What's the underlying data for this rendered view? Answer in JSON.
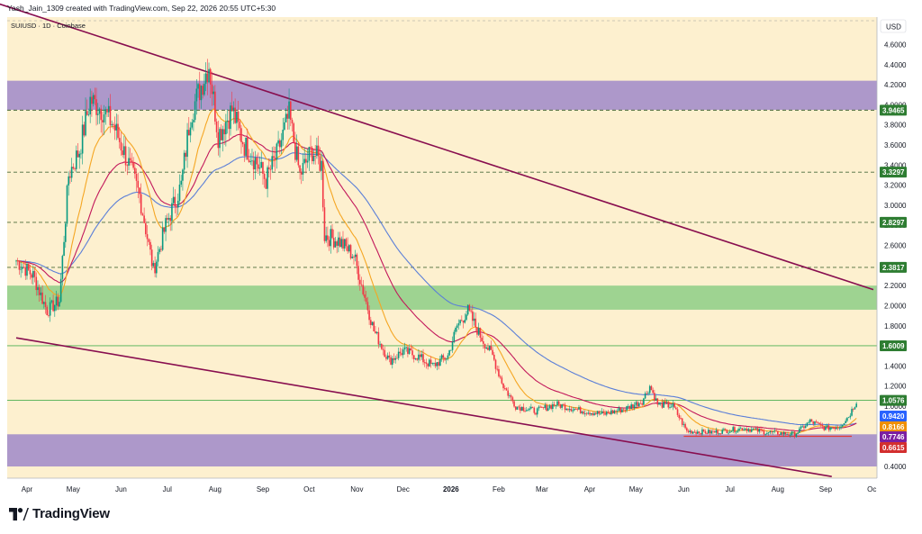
{
  "header": {
    "byline": "Yash_Jain_1309 created with TradingView.com, Sep 22, 2026 20:55 UTC+5:30",
    "symbol": "SUIUSD · 1D · Coinbase"
  },
  "brand": {
    "name": "TradingView"
  },
  "colors": {
    "background": "#fdf0cf",
    "purple_zone": "#a48ec9",
    "green_zone": "#93cf8a",
    "channel_line": "#880e4f",
    "ema_fast": "#f5a623",
    "ema_mid": "#c2185b",
    "ma_slow": "#5b7fd8",
    "bull": "#089981",
    "bear": "#f23645",
    "support_line": "#e53935",
    "level_line": "#4caf50"
  },
  "chart_data": {
    "type": "candlestick",
    "currency": "USD",
    "x_tick_labels": [
      "Apr",
      "May",
      "Jun",
      "Jul",
      "Aug",
      "Sep",
      "Oct",
      "Nov",
      "Dec",
      "2026",
      "Feb",
      "Mar",
      "Apr",
      "May",
      "Jun",
      "Jul",
      "Aug",
      "Sep",
      "Oc"
    ],
    "y_ticks": [
      "4.6000",
      "4.4000",
      "4.2000",
      "4.0000",
      "3.8000",
      "3.6000",
      "3.4000",
      "3.2000",
      "3.0000",
      "2.8000",
      "2.6000",
      "2.4000",
      "2.2000",
      "2.0000",
      "1.8000",
      "1.6000",
      "1.4000",
      "1.2000",
      "1.0000",
      "0.4000"
    ],
    "y_tick_values": [
      4.6,
      4.4,
      4.2,
      4.0,
      3.8,
      3.6,
      3.4,
      3.2,
      3.0,
      2.8,
      2.6,
      2.4,
      2.2,
      2.0,
      1.8,
      1.6,
      1.4,
      1.2,
      1.0,
      0.4
    ],
    "price_levels": [
      {
        "label": "3.9465",
        "value": 3.9465,
        "style": "dashed",
        "badge": "green"
      },
      {
        "label": "3.3297",
        "value": 3.3297,
        "style": "dashed",
        "badge": "green"
      },
      {
        "label": "2.8297",
        "value": 2.8297,
        "style": "dashed",
        "badge": "green"
      },
      {
        "label": "2.3817",
        "value": 2.3817,
        "style": "dashed",
        "badge": "green"
      },
      {
        "label": "1.6009",
        "value": 1.6009,
        "style": "solid",
        "badge": "green"
      },
      {
        "label": "1.0576",
        "value": 1.0576,
        "style": "solid",
        "badge": "green"
      },
      {
        "label": "0.9420",
        "value": 0.942,
        "style": "none",
        "badge": "blue"
      },
      {
        "label": "0.8166",
        "value": 0.8166,
        "style": "none",
        "badge": "orange"
      },
      {
        "label": "0.7746",
        "value": 0.7746,
        "style": "none",
        "badge": "purple"
      },
      {
        "label": "0.6615",
        "value": 0.6615,
        "style": "none",
        "badge": "red"
      }
    ],
    "zones": [
      {
        "name": "resistance-zone",
        "from": 3.95,
        "to": 4.24,
        "color": "purple"
      },
      {
        "name": "support-zone",
        "from": 1.96,
        "to": 2.2,
        "color": "green"
      },
      {
        "name": "bottom-zone",
        "from": 0.4,
        "to": 0.72,
        "color": "purple"
      }
    ],
    "channel": {
      "upper": {
        "start": [
          "2025-03-05",
          5.05
        ],
        "end": [
          "2026-10-02",
          2.16
        ]
      },
      "lower": {
        "start": [
          "2025-03-25",
          1.68
        ],
        "end": [
          "2026-09-05",
          0.3
        ]
      }
    },
    "support_line": {
      "from": "2026-06-01",
      "to": "2026-09-18",
      "value": 0.7
    },
    "close_path": [
      [
        "2025-03-25",
        2.45
      ],
      [
        "2025-04-05",
        2.3
      ],
      [
        "2025-04-14",
        1.95
      ],
      [
        "2025-04-22",
        2.05
      ],
      [
        "2025-04-28",
        3.3
      ],
      [
        "2025-05-05",
        3.55
      ],
      [
        "2025-05-12",
        4.05
      ],
      [
        "2025-05-20",
        3.95
      ],
      [
        "2025-05-27",
        3.8
      ],
      [
        "2025-06-05",
        3.45
      ],
      [
        "2025-06-13",
        3.1
      ],
      [
        "2025-06-22",
        2.35
      ],
      [
        "2025-06-30",
        2.8
      ],
      [
        "2025-07-10",
        3.2
      ],
      [
        "2025-07-16",
        3.9
      ],
      [
        "2025-07-22",
        4.15
      ],
      [
        "2025-07-28",
        4.4
      ],
      [
        "2025-08-03",
        3.7
      ],
      [
        "2025-08-12",
        3.95
      ],
      [
        "2025-08-20",
        3.6
      ],
      [
        "2025-08-27",
        3.45
      ],
      [
        "2025-09-03",
        3.25
      ],
      [
        "2025-09-10",
        3.5
      ],
      [
        "2025-09-18",
        3.9
      ],
      [
        "2025-09-25",
        3.3
      ],
      [
        "2025-10-03",
        3.55
      ],
      [
        "2025-10-09",
        3.4
      ],
      [
        "2025-10-11",
        2.7
      ],
      [
        "2025-10-20",
        2.65
      ],
      [
        "2025-10-30",
        2.5
      ],
      [
        "2025-11-05",
        2.15
      ],
      [
        "2025-11-12",
        1.75
      ],
      [
        "2025-11-22",
        1.45
      ],
      [
        "2025-12-01",
        1.55
      ],
      [
        "2025-12-10",
        1.5
      ],
      [
        "2025-12-20",
        1.4
      ],
      [
        "2025-12-30",
        1.5
      ],
      [
        "2026-01-05",
        1.8
      ],
      [
        "2026-01-12",
        1.95
      ],
      [
        "2026-01-20",
        1.7
      ],
      [
        "2026-01-28",
        1.5
      ],
      [
        "2026-02-04",
        1.2
      ],
      [
        "2026-02-12",
        1.0
      ],
      [
        "2026-02-25",
        0.95
      ],
      [
        "2026-03-10",
        1.02
      ],
      [
        "2026-03-25",
        0.96
      ],
      [
        "2026-04-10",
        0.92
      ],
      [
        "2026-04-25",
        0.98
      ],
      [
        "2026-05-05",
        1.05
      ],
      [
        "2026-05-10",
        1.2
      ],
      [
        "2026-05-15",
        1.02
      ],
      [
        "2026-05-25",
        1.0
      ],
      [
        "2026-06-03",
        0.75
      ],
      [
        "2026-06-20",
        0.74
      ],
      [
        "2026-07-10",
        0.78
      ],
      [
        "2026-07-25",
        0.74
      ],
      [
        "2026-08-12",
        0.72
      ],
      [
        "2026-08-22",
        0.85
      ],
      [
        "2026-09-01",
        0.78
      ],
      [
        "2026-09-10",
        0.8
      ],
      [
        "2026-09-16",
        0.9
      ],
      [
        "2026-09-21",
        1.05
      ]
    ]
  }
}
